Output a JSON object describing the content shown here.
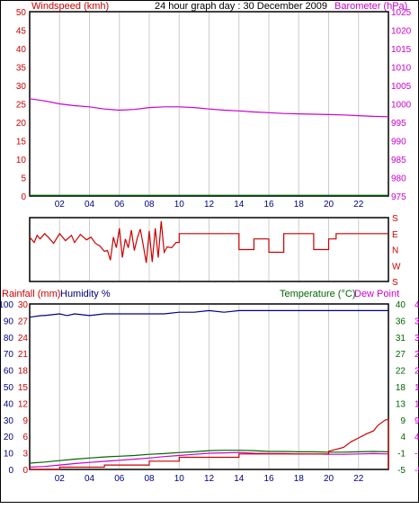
{
  "header": {
    "left_label": "Windspeed (kmh)",
    "title": "24 hour graph day : 30 December 2009",
    "right_label": "Barometer (hPa)"
  },
  "colors": {
    "red": "#cc0000",
    "blue": "#000080",
    "green": "#006600",
    "magenta": "#cc00cc",
    "grid": "#cccccc"
  },
  "chart_data": [
    {
      "type": "line",
      "x_ticks": [
        "02",
        "04",
        "06",
        "08",
        "10",
        "12",
        "14",
        "16",
        "18",
        "20",
        "22"
      ],
      "y_left": {
        "label": "Windspeed (kmh)",
        "ticks": [
          0,
          5,
          10,
          15,
          20,
          25,
          30,
          35,
          40,
          45,
          50
        ],
        "lim": [
          0,
          50
        ]
      },
      "y_right": {
        "label": "Barometer (hPa)",
        "ticks": [
          975,
          980,
          985,
          990,
          995,
          1000,
          1005,
          1010,
          1015,
          1020,
          1025
        ],
        "lim": [
          975,
          1025
        ]
      },
      "series": [
        {
          "name": "Windspeed (kmh)",
          "color": "green",
          "axis": "left",
          "x": [
            0,
            24
          ],
          "y": [
            0.2,
            0.2
          ]
        },
        {
          "name": "Barometer (hPa)",
          "color": "magenta",
          "axis": "right",
          "x": [
            0,
            1,
            2,
            3,
            4,
            5,
            6,
            7,
            8,
            9,
            10,
            11,
            12,
            13,
            14,
            15,
            16,
            17,
            18,
            19,
            20,
            21,
            22,
            23,
            24
          ],
          "y": [
            1001.4,
            1000.8,
            1000.0,
            999.5,
            999.2,
            998.6,
            998.3,
            998.5,
            999.0,
            999.2,
            999.2,
            999.0,
            998.6,
            998.3,
            998.1,
            997.8,
            997.6,
            997.4,
            997.3,
            997.2,
            997.1,
            997.0,
            996.8,
            996.6,
            996.5
          ]
        }
      ]
    },
    {
      "type": "line",
      "x_ticks": [
        "02",
        "04",
        "06",
        "08",
        "10",
        "12",
        "14",
        "16",
        "18",
        "20",
        "22"
      ],
      "y_right": {
        "ticks": [
          "S",
          "E",
          "N",
          "W",
          "S"
        ]
      },
      "series": [
        {
          "name": "Wind direction",
          "color": "red",
          "x": [
            0,
            0.3,
            0.5,
            0.7,
            1,
            1.3,
            1.6,
            2,
            2.4,
            2.8,
            3,
            3.4,
            3.8,
            4.1,
            4.4,
            4.7,
            5,
            5.2,
            5.4,
            5.6,
            5.8,
            6,
            6.2,
            6.4,
            6.6,
            6.8,
            7,
            7.2,
            7.4,
            7.6,
            7.8,
            8,
            8.2,
            8.4,
            8.6,
            8.8,
            9,
            9.2,
            9.5,
            9.8,
            10,
            10,
            14,
            14,
            15,
            15,
            16,
            16,
            17,
            17,
            19,
            19,
            20,
            20,
            20.5,
            20.5,
            24
          ],
          "y": [
            250,
            220,
            260,
            240,
            270,
            245,
            215,
            270,
            230,
            260,
            220,
            265,
            235,
            250,
            215,
            200,
            170,
            175,
            120,
            250,
            190,
            300,
            135,
            240,
            190,
            290,
            175,
            245,
            295,
            205,
            105,
            285,
            110,
            300,
            135,
            340,
            165,
            195,
            190,
            220,
            220,
            270,
            270,
            180,
            180,
            240,
            240,
            165,
            165,
            270,
            270,
            180,
            180,
            240,
            240,
            270,
            270
          ]
        }
      ]
    },
    {
      "type": "line",
      "x_ticks": [
        "02",
        "04",
        "06",
        "08",
        "10",
        "12",
        "14",
        "16",
        "18",
        "20",
        "22"
      ],
      "y_axes": {
        "rainfall": {
          "label": "Rainfall (mm)",
          "ticks": [
            0,
            3,
            6,
            9,
            12,
            15,
            18,
            21,
            24,
            27,
            30
          ]
        },
        "humidity": {
          "label": "Humidity %",
          "ticks": [
            0,
            10,
            20,
            30,
            40,
            50,
            60,
            70,
            80,
            90,
            100
          ]
        },
        "temperature": {
          "label": "Temperature (°C)",
          "ticks": [
            -5,
            -1,
            4,
            9,
            13,
            18,
            22,
            27,
            31,
            36,
            40
          ]
        },
        "dewpoint": {
          "label": "Dew Point",
          "ticks": [
            -5,
            -1,
            4,
            9,
            13,
            18,
            22,
            27,
            31,
            36,
            40
          ]
        }
      },
      "series": [
        {
          "name": "Humidity %",
          "color": "blue",
          "axis": "humidity",
          "x": [
            0,
            0.8,
            1,
            2,
            2.5,
            3,
            4,
            5,
            6,
            7,
            8,
            9,
            10,
            11,
            12,
            13,
            14,
            24
          ],
          "y": [
            92,
            93,
            93,
            94,
            93,
            94,
            93,
            94,
            94,
            94,
            94,
            94,
            95,
            95,
            96,
            95,
            96,
            96
          ]
        },
        {
          "name": "Temperature (°C)",
          "color": "green",
          "axis": "temperature",
          "x": [
            0,
            1,
            2,
            3,
            4,
            5,
            6,
            7,
            8,
            9,
            10,
            11,
            12,
            13,
            14,
            15,
            16,
            17,
            18,
            19,
            20,
            21,
            22,
            23,
            24
          ],
          "y": [
            -3.3,
            -3.0,
            -2.6,
            -2.2,
            -1.9,
            -1.6,
            -1.4,
            -1.2,
            -0.9,
            -0.7,
            -0.4,
            -0.2,
            0.1,
            0.2,
            0.2,
            0.1,
            -0.1,
            -0.1,
            -0.2,
            -0.2,
            -0.3,
            -0.3,
            -0.2,
            -0.1,
            -0.2
          ]
        },
        {
          "name": "Dew Point",
          "color": "magenta",
          "axis": "dewpoint",
          "x": [
            0,
            1,
            2,
            3,
            4,
            5,
            6,
            7,
            8,
            9,
            10,
            11,
            12,
            13,
            14,
            15,
            16,
            17,
            18,
            19,
            20,
            21,
            22,
            23,
            24
          ],
          "y": [
            -4.4,
            -4.2,
            -3.8,
            -3.4,
            -3.1,
            -2.8,
            -2.5,
            -2.2,
            -1.9,
            -1.5,
            -1.2,
            -0.9,
            -0.6,
            -0.5,
            -0.4,
            -0.6,
            -0.7,
            -0.7,
            -0.8,
            -0.8,
            -0.9,
            -0.9,
            -0.8,
            -0.7,
            -0.8
          ]
        },
        {
          "name": "Rainfall (mm)",
          "color": "red",
          "axis": "rainfall",
          "x": [
            0,
            2,
            2,
            5,
            5,
            8,
            8,
            10,
            10,
            14,
            14,
            20,
            20,
            21,
            21.5,
            22,
            22.5,
            23,
            23.3,
            23.6,
            23.8,
            24,
            24
          ],
          "y": [
            0,
            0,
            0.4,
            0.4,
            0.8,
            0.8,
            1.5,
            1.5,
            2.2,
            2.2,
            2.8,
            2.8,
            3.3,
            4,
            5,
            5.7,
            6.4,
            7,
            8,
            8.6,
            9,
            9,
            0
          ]
        }
      ]
    }
  ]
}
